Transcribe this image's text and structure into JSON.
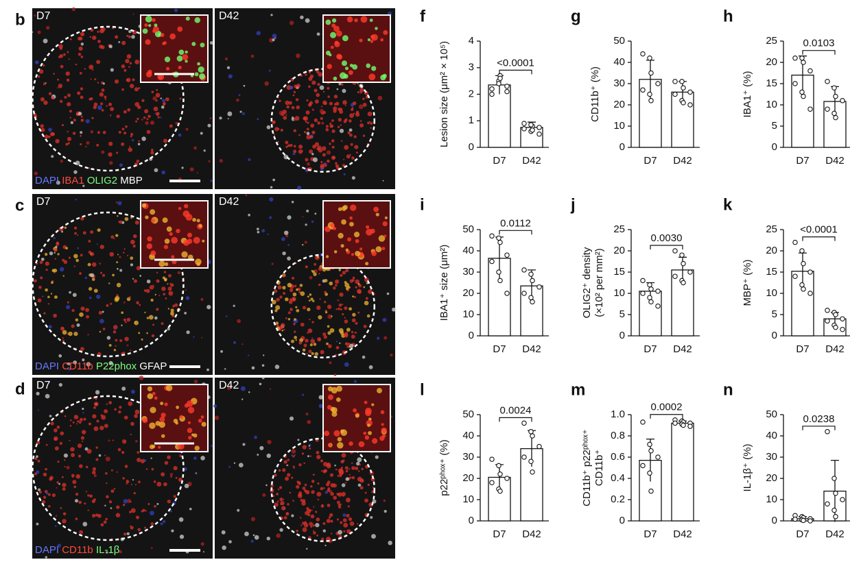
{
  "image_panels": [
    {
      "letter": "b",
      "images": [
        "D7",
        "D42"
      ],
      "legend": [
        {
          "text": "DAPI",
          "color": "#6a78ff"
        },
        {
          "text": "IBA1",
          "color": "#ff4a3a"
        },
        {
          "text": "OLIG2",
          "color": "#7dff7d"
        },
        {
          "text": "MBP",
          "color": "#ffffff"
        }
      ]
    },
    {
      "letter": "c",
      "images": [
        "D7",
        "D42"
      ],
      "legend": [
        {
          "text": "DAPI",
          "color": "#6a78ff"
        },
        {
          "text": "CD11b",
          "color": "#ff4a3a"
        },
        {
          "text": "P22phox",
          "color": "#7dff7d"
        },
        {
          "text": "GFAP",
          "color": "#ffffff"
        }
      ]
    },
    {
      "letter": "d",
      "images": [
        "D7",
        "D42"
      ],
      "legend": [
        {
          "text": "DAPI",
          "color": "#6a78ff"
        },
        {
          "text": "CD11b",
          "color": "#ff4a3a"
        },
        {
          "text": "IL-1β",
          "color": "#7dff7d"
        }
      ]
    }
  ],
  "chart_data": [
    {
      "type": "bar",
      "letter": "f",
      "ylabel": [
        "Lesion size (μm² × 10⁵)"
      ],
      "categories": [
        "D7",
        "D42"
      ],
      "values": [
        2.35,
        0.75
      ],
      "errors": [
        0.35,
        0.2
      ],
      "points": [
        [
          2.2,
          2.5,
          2.7,
          2.3,
          2.0,
          2.4,
          2.6,
          2.1
        ],
        [
          0.9,
          0.6,
          0.8,
          0.5,
          0.7,
          0.85,
          0.65,
          0.75
        ]
      ],
      "ylim": [
        0,
        4
      ],
      "yticks": [
        0,
        1,
        2,
        3,
        4
      ],
      "annotation": "<0.0001",
      "color": "#ffffff"
    },
    {
      "type": "bar",
      "letter": "g",
      "ylabel": [
        "CD11b⁺ (%)"
      ],
      "categories": [
        "D7",
        "D42"
      ],
      "values": [
        32,
        26
      ],
      "errors": [
        9,
        5
      ],
      "points": [
        [
          44,
          42,
          35,
          30,
          27,
          25,
          22
        ],
        [
          31,
          31,
          28,
          26,
          25,
          22,
          21,
          20
        ]
      ],
      "ylim": [
        0,
        50
      ],
      "yticks": [
        0,
        10,
        20,
        30,
        40,
        50
      ],
      "annotation": null,
      "color": "#ffffff"
    },
    {
      "type": "bar",
      "letter": "h",
      "ylabel": [
        "IBA1⁺ (%)"
      ],
      "categories": [
        "D7",
        "D42"
      ],
      "values": [
        17,
        10.8
      ],
      "errors": [
        4.5,
        3.5
      ],
      "points": [
        [
          21,
          21,
          20,
          18,
          15,
          13,
          12,
          9
        ],
        [
          15.5,
          14,
          12,
          11,
          9,
          8,
          7
        ]
      ],
      "ylim": [
        0,
        25
      ],
      "yticks": [
        0,
        5,
        10,
        15,
        20,
        25
      ],
      "annotation": "0.0103",
      "color": "#ffffff"
    },
    {
      "type": "bar",
      "letter": "i",
      "ylabel": [
        "IBA1⁺ size (μm²)"
      ],
      "categories": [
        "D7",
        "D42"
      ],
      "values": [
        36.5,
        23.5
      ],
      "errors": [
        10,
        7.5
      ],
      "points": [
        [
          47,
          46,
          44,
          38,
          35,
          30,
          26,
          20
        ],
        [
          31,
          29,
          26,
          23,
          20,
          18,
          16
        ]
      ],
      "ylim": [
        0,
        50
      ],
      "yticks": [
        0,
        10,
        20,
        30,
        40,
        50
      ],
      "annotation": "0.0112",
      "color": "#ffffff"
    },
    {
      "type": "bar",
      "letter": "j",
      "ylabel": [
        "OLIG2⁺ density",
        "(×10² per mm²)"
      ],
      "categories": [
        "D7",
        "D42"
      ],
      "values": [
        10.5,
        15.5
      ],
      "errors": [
        2,
        3
      ],
      "points": [
        [
          13,
          12,
          11,
          10.5,
          10,
          9,
          8,
          7
        ],
        [
          20,
          19,
          17,
          15,
          14,
          13,
          12.5
        ]
      ],
      "ylim": [
        0,
        25
      ],
      "yticks": [
        0,
        5,
        10,
        15,
        20,
        25
      ],
      "annotation": "0.0030",
      "color": "#ffffff"
    },
    {
      "type": "bar",
      "letter": "k",
      "ylabel": [
        "MBP⁺ (%)"
      ],
      "categories": [
        "D7",
        "D42"
      ],
      "values": [
        15.2,
        4
      ],
      "errors": [
        4.3,
        1.5
      ],
      "points": [
        [
          22,
          20,
          17,
          15,
          14,
          12,
          11,
          10
        ],
        [
          6,
          5.5,
          5,
          4,
          3.5,
          2.5,
          2,
          1.5
        ]
      ],
      "ylim": [
        0,
        25
      ],
      "yticks": [
        0,
        5,
        10,
        15,
        20,
        25
      ],
      "annotation": "<0.0001",
      "color": "#ffffff"
    },
    {
      "type": "bar",
      "letter": "l",
      "ylabel": [
        "p22ᵖʰᵒˣ⁺ (%)"
      ],
      "categories": [
        "D7",
        "D42"
      ],
      "values": [
        20.5,
        34
      ],
      "errors": [
        6,
        8.5
      ],
      "points": [
        [
          29,
          26,
          22,
          20,
          18,
          15,
          14
        ],
        [
          46,
          42,
          40,
          35,
          30,
          28,
          23
        ]
      ],
      "ylim": [
        0,
        50
      ],
      "yticks": [
        0,
        10,
        20,
        30,
        40,
        50
      ],
      "annotation": "0.0024",
      "color": "#ffffff"
    },
    {
      "type": "bar",
      "letter": "m",
      "ylabel": [
        "CD11b⁺ p22ᵖʰᵒˣ⁺",
        "CD11b⁺"
      ],
      "categories": [
        "D7",
        "D42"
      ],
      "values": [
        0.57,
        0.92
      ],
      "errors": [
        0.2,
        0.02
      ],
      "points": [
        [
          0.93,
          0.72,
          0.66,
          0.6,
          0.52,
          0.45,
          0.28
        ],
        [
          0.95,
          0.94,
          0.93,
          0.92,
          0.92,
          0.91,
          0.9,
          0.89
        ]
      ],
      "ylim": [
        0,
        1
      ],
      "yticks": [
        0,
        0.2,
        0.4,
        0.6,
        0.8,
        {
          "value": 1,
          "label": "1.0"
        }
      ],
      "annotation": "0.0002",
      "color": "#ffffff"
    },
    {
      "type": "bar",
      "letter": "n",
      "ylabel": [
        "IL-1β⁺ (%)"
      ],
      "categories": [
        "D7",
        "D42"
      ],
      "values": [
        1,
        14
      ],
      "errors": [
        1,
        14.5
      ],
      "points": [
        [
          2.5,
          2,
          1.5,
          1,
          0.8,
          0.5,
          0.2,
          0
        ],
        [
          42,
          20,
          13,
          10,
          8,
          5,
          2
        ]
      ],
      "ylim": [
        0,
        50
      ],
      "yticks": [
        0,
        10,
        20,
        30,
        40,
        50
      ],
      "annotation": "0.0238",
      "color": "#ffffff"
    }
  ]
}
